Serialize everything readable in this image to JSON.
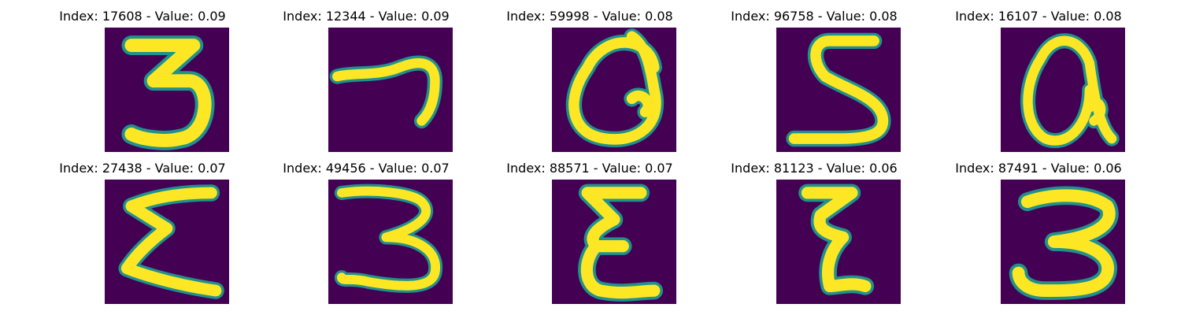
{
  "figure": {
    "colors": {
      "background": "#440154",
      "mid": "#21918c",
      "high": "#fde725"
    },
    "panels": [
      {
        "title": "Index: 17608 - Value: 0.09",
        "digit": "3"
      },
      {
        "title": "Index: 12344 - Value: 0.09",
        "digit": "7"
      },
      {
        "title": "Index: 59998 - Value: 0.08",
        "digit": "a"
      },
      {
        "title": "Index: 96758 - Value: 0.08",
        "digit": "5"
      },
      {
        "title": "Index: 16107 - Value: 0.08",
        "digit": "a"
      },
      {
        "title": "Index: 27438 - Value: 0.07",
        "digit": "Σ"
      },
      {
        "title": "Index: 49456 - Value: 0.07",
        "digit": "3"
      },
      {
        "title": "Index: 88571 - Value: 0.07",
        "digit": "ε"
      },
      {
        "title": "Index: 81123 - Value: 0.06",
        "digit": "ζ"
      },
      {
        "title": "Index: 87491 - Value: 0.06",
        "digit": "3"
      }
    ]
  }
}
